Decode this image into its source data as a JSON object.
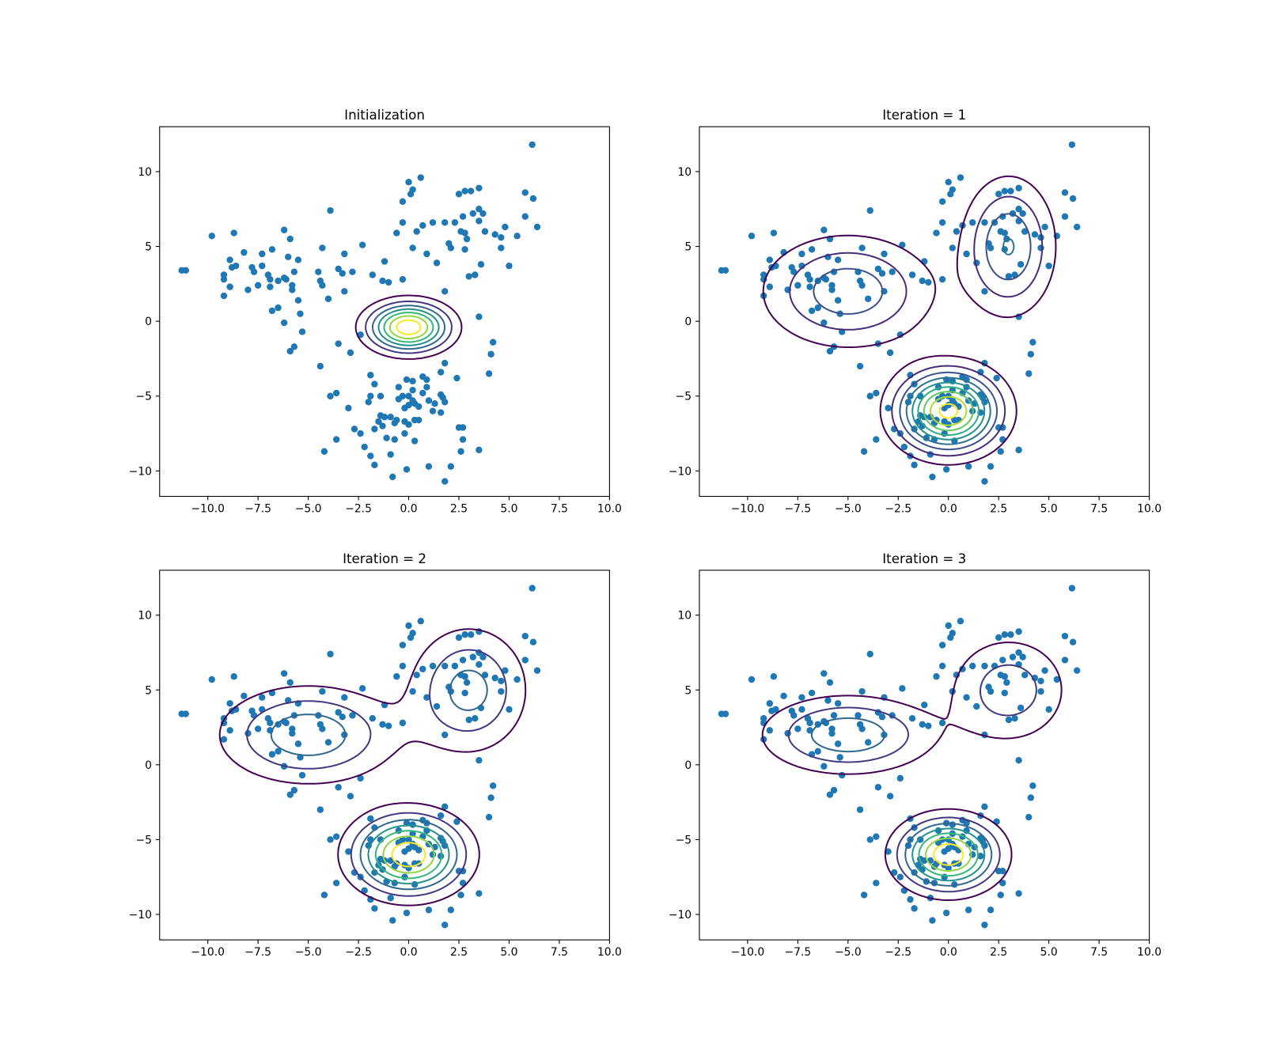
{
  "chart_data": [
    {
      "type": "scatter",
      "title": "Initialization",
      "color": "#1f77b4",
      "x": [
        6.15,
        -11.3,
        -11.1,
        -9.8,
        -8.7,
        -8.2,
        -9.2,
        -9.2,
        -8.9,
        -8.8,
        -8.9,
        -9.2,
        -8.6,
        -7.8,
        -7.7,
        -7.3,
        -7.3,
        -7.5,
        -8.0,
        -7.0,
        -6.9,
        -6.8,
        -6.9,
        -6.8,
        -6.5,
        -6.2,
        -6.5,
        -6.2,
        -6.0,
        -5.9,
        -5.7,
        -6.1,
        -5.8,
        -5.8,
        -6.2,
        -5.9,
        -5.7,
        -5.5,
        -5.5,
        -5.4,
        -5.3,
        -4.5,
        -4.3,
        -4.4,
        -4.3,
        -3.9,
        -4.0,
        -4.4,
        -3.5,
        -3.3,
        -3.2,
        -3.2,
        -3.5,
        -2.9,
        -2.8,
        -2.3,
        -1.8,
        -1.3,
        -1.0,
        -1.2,
        -0.6,
        -0.3,
        -0.3,
        -0.3,
        0.0,
        0.1,
        0.2,
        0.6,
        0.2,
        0.4,
        0.7,
        0.9,
        1.4,
        1.2,
        1.8,
        2.0,
        2.1,
        1.8,
        2.3,
        2.5,
        2.8,
        2.6,
        2.8,
        2.7,
        2.8,
        2.9,
        3.0,
        3.3,
        3.1,
        3.5,
        3.2,
        3.5,
        3.5,
        3.6,
        3.7,
        3.8,
        3.5,
        4.3,
        4.6,
        4.6,
        4.8,
        5.0,
        5.4,
        4.2,
        4.1,
        4.0,
        5.8,
        5.8,
        6.2,
        6.4,
        -2.4,
        1.8,
        -1.9,
        -1.7,
        -1.9,
        -2.0,
        -1.4,
        -3.9,
        -3.6,
        -3.0,
        -3.6,
        -4.2,
        -2.7,
        -2.4,
        -2.2,
        -1.9,
        -1.7,
        -1.5,
        -1.4,
        -1.2,
        -1.3,
        -0.9,
        -0.7,
        -0.6,
        -0.7,
        -0.9,
        -0.8,
        -0.5,
        -0.5,
        -0.3,
        -0.2,
        0.0,
        -0.1,
        0.0,
        0.2,
        -0.2,
        0.0,
        -0.2,
        -0.1,
        0.2,
        0.2,
        0.3,
        0.5,
        0.3,
        0.5,
        0.3,
        0.7,
        0.9,
        0.7,
        0.9,
        1.0,
        1.3,
        1.0,
        1.6,
        1.6,
        1.7,
        1.6,
        1.8,
        2.1,
        1.8,
        2.4,
        2.5,
        2.7,
        2.7,
        2.6,
        3.5,
        -1.7,
        -1.1,
        1.2
      ],
      "y": [
        11.8,
        3.4,
        3.4,
        5.7,
        5.9,
        4.6,
        3.1,
        2.8,
        4.1,
        3.6,
        2.3,
        1.7,
        3.7,
        3.6,
        3.3,
        4.5,
        3.7,
        2.4,
        2.1,
        3.1,
        2.8,
        4.8,
        2.3,
        0.7,
        2.7,
        2.9,
        0.9,
        6.1,
        4.3,
        5.5,
        3.3,
        2.8,
        2.4,
        2.1,
        -0.1,
        -2.0,
        -1.7,
        1.4,
        4.1,
        0.5,
        -0.7,
        3.3,
        4.9,
        2.7,
        2.4,
        7.4,
        1.5,
        -3.0,
        3.5,
        3.2,
        4.5,
        2.0,
        -1.5,
        -2.1,
        3.3,
        5.1,
        3.1,
        2.7,
        2.6,
        4.0,
        5.9,
        6.6,
        2.8,
        8.0,
        9.3,
        8.5,
        8.8,
        9.6,
        4.9,
        6.0,
        6.4,
        4.5,
        3.9,
        6.6,
        6.6,
        5.2,
        4.9,
        2.0,
        6.6,
        8.5,
        8.7,
        6.0,
        5.9,
        7.0,
        4.8,
        5.5,
        3.0,
        3.1,
        8.7,
        8.9,
        7.2,
        6.7,
        7.5,
        3.8,
        7.2,
        6.0,
        0.3,
        5.8,
        4.9,
        5.6,
        6.3,
        3.7,
        5.7,
        -1.4,
        -2.2,
        -3.5,
        7.0,
        8.6,
        8.2,
        6.3,
        -0.9,
        -2.8,
        -3.6,
        -4.2,
        -5.0,
        -5.4,
        -5.0,
        -5.0,
        -4.8,
        -5.8,
        -7.9,
        -8.7,
        -7.2,
        -7.5,
        -8.4,
        -9.0,
        -9.6,
        -6.7,
        -6.3,
        -6.4,
        -7.0,
        -6.4,
        -6.8,
        -6.6,
        -7.9,
        -8.9,
        -10.4,
        -4.4,
        -5.2,
        -5.0,
        -5.8,
        -5.6,
        -3.9,
        -5.0,
        -5.3,
        -6.7,
        -6.9,
        -7.5,
        -9.9,
        -4.6,
        -4.0,
        -5.5,
        -5.7,
        -6.6,
        -6.6,
        -8.0,
        -3.7,
        -3.9,
        -4.8,
        -4.4,
        -5.3,
        -5.5,
        -9.7,
        -3.4,
        -4.9,
        -5.1,
        -6.1,
        -5.4,
        -9.7,
        -10.7,
        -3.8,
        -7.1,
        -7.1,
        -7.9,
        -8.7,
        -8.6,
        -7.2,
        -7.8,
        -6.0
      ],
      "contours": {
        "colormap": "viridis",
        "levels": [
          0.015,
          0.03,
          0.045,
          0.06,
          0.075,
          0.09,
          0.105
        ],
        "components": [
          {
            "weight": 1,
            "mean": [
              0,
              -0.4
            ],
            "cov": [
              [
                1.69,
                0
              ],
              [
                0,
                1.1
              ]
            ]
          }
        ]
      },
      "xlim": [
        -12.4,
        10
      ],
      "ylim": [
        -11.7,
        13.0
      ],
      "xticks": [
        {
          "value": -10,
          "label": "−10.0"
        },
        {
          "value": -7.5,
          "label": "−7.5"
        },
        {
          "value": -5,
          "label": "−5.0"
        },
        {
          "value": -2.5,
          "label": "−2.5"
        },
        {
          "value": 0,
          "label": "0.0"
        },
        2.5,
        {
          "value": 5,
          "label": "5.0"
        },
        7.5,
        {
          "value": 10,
          "label": "10.0"
        }
      ],
      "yticks": [
        {
          "value": -10,
          "label": "−10"
        },
        {
          "value": -5,
          "label": "−5"
        },
        0,
        5,
        10
      ]
    },
    {
      "type": "scatter",
      "title": "Iteration = 1",
      "contours": {
        "colormap": "viridis",
        "levels": [
          0.0025,
          0.005,
          0.0075,
          0.01,
          0.0125,
          0.015,
          0.0175,
          0.02,
          0.0225
        ],
        "components": [
          {
            "weight": 0.35,
            "mean": [
              -5,
              2
            ],
            "cov": [
              [
                6.76,
                0
              ],
              [
                0,
                5.29
              ]
            ]
          },
          {
            "weight": 0.25,
            "mean": [
              3,
              5
            ],
            "cov": [
              [
                1.96,
                0
              ],
              [
                0,
                7.84
              ]
            ]
          },
          {
            "weight": 0.4,
            "mean": [
              0,
              -6
            ],
            "cov": [
              [
                2.56,
                0
              ],
              [
                0,
                2.89
              ]
            ]
          }
        ]
      },
      "xlim": [
        -12.4,
        10
      ],
      "ylim": [
        -11.7,
        13.0
      ],
      "xticks": [
        {
          "value": -10,
          "label": "−10.0"
        },
        {
          "value": -7.5,
          "label": "−7.5"
        },
        {
          "value": -5,
          "label": "−5.0"
        },
        {
          "value": -2.5,
          "label": "−2.5"
        },
        {
          "value": 0,
          "label": "0.0"
        },
        2.5,
        {
          "value": 5,
          "label": "5.0"
        },
        7.5,
        {
          "value": 10,
          "label": "10.0"
        }
      ],
      "yticks": [
        {
          "value": -10,
          "label": "−10"
        },
        {
          "value": -5,
          "label": "−5"
        },
        0,
        5,
        10
      ]
    },
    {
      "type": "scatter",
      "title": "Iteration = 2",
      "contours": {
        "colormap": "viridis",
        "levels": [
          0.0028,
          0.0056,
          0.0084,
          0.0112,
          0.014,
          0.0168,
          0.0196
        ],
        "components": [
          {
            "weight": 0.36,
            "mean": [
              -5,
              2
            ],
            "cov": [
              [
                7.29,
                0
              ],
              [
                0,
                4
              ]
            ]
          },
          {
            "weight": 0.28,
            "mean": [
              3,
              5
            ],
            "cov": [
              [
                3.24,
                0
              ],
              [
                0,
                6.76
              ]
            ]
          },
          {
            "weight": 0.4,
            "mean": [
              0,
              -6
            ],
            "cov": [
              [
                3.0,
                0
              ],
              [
                0,
                2.8
              ]
            ]
          }
        ]
      },
      "xlim": [
        -12.4,
        10
      ],
      "ylim": [
        -11.7,
        13.0
      ],
      "xticks": [
        {
          "value": -10,
          "label": "−10.0"
        },
        {
          "value": -7.5,
          "label": "−7.5"
        },
        {
          "value": -5,
          "label": "−5.0"
        },
        {
          "value": -2.5,
          "label": "−2.5"
        },
        {
          "value": 0,
          "label": "0.0"
        },
        2.5,
        {
          "value": 5,
          "label": "5.0"
        },
        7.5,
        {
          "value": 10,
          "label": "10.0"
        }
      ],
      "yticks": [
        {
          "value": -10,
          "label": "−10"
        },
        {
          "value": -5,
          "label": "−5"
        },
        0,
        5,
        10
      ]
    },
    {
      "type": "scatter",
      "title": "Iteration = 3",
      "contours": {
        "colormap": "viridis",
        "levels": [
          0.0035,
          0.007,
          0.0105,
          0.014,
          0.0175,
          0.021,
          0.0245
        ],
        "components": [
          {
            "weight": 0.35,
            "mean": [
              -5,
              2
            ],
            "cov": [
              [
                6.76,
                0
              ],
              [
                0,
                2.56
              ]
            ]
          },
          {
            "weight": 0.25,
            "mean": [
              3,
              5
            ],
            "cov": [
              [
                3.61,
                0
              ],
              [
                0,
                5.29
              ]
            ]
          },
          {
            "weight": 0.4,
            "mean": [
              0,
              -6
            ],
            "cov": [
              [
                2.4,
                0
              ],
              [
                0,
                2.25
              ]
            ]
          }
        ]
      },
      "xlim": [
        -12.4,
        10
      ],
      "ylim": [
        -11.7,
        13.0
      ],
      "xticks": [
        {
          "value": -10,
          "label": "−10.0"
        },
        {
          "value": -7.5,
          "label": "−7.5"
        },
        {
          "value": -5,
          "label": "−5.0"
        },
        {
          "value": -2.5,
          "label": "−2.5"
        },
        {
          "value": 0,
          "label": "0.0"
        },
        2.5,
        {
          "value": 5,
          "label": "5.0"
        },
        7.5,
        {
          "value": 10,
          "label": "10.0"
        }
      ],
      "yticks": [
        {
          "value": -10,
          "label": "−10"
        },
        {
          "value": -5,
          "label": "−5"
        },
        0,
        5,
        10
      ]
    }
  ]
}
